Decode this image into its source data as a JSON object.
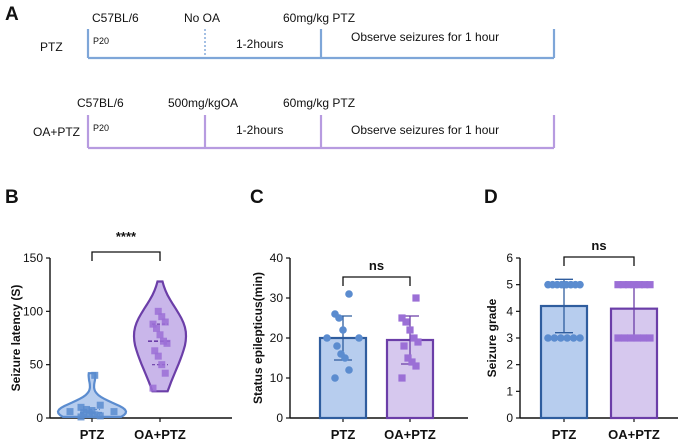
{
  "panel_labels": {
    "a": "A",
    "b": "B",
    "c": "C",
    "d": "D"
  },
  "timeline": {
    "row1": {
      "group": "PTZ",
      "strain": "C57BL/6",
      "age": "P20",
      "treatment": "No OA",
      "dose": "60mg/kg PTZ",
      "wait": "1-2hours",
      "observe": "Observe seizures for 1 hour",
      "color": "#7ea6d8"
    },
    "row2": {
      "group": "OA+PTZ",
      "strain": "C57BL/6",
      "age": "P20",
      "treatment": "500mg/kgOA",
      "dose": "60mg/kg PTZ",
      "wait": "1-2hours",
      "observe": "Observe seizures for 1 hour",
      "color": "#b79be0"
    }
  },
  "chart_data": [
    {
      "type": "violin",
      "panel": "B",
      "ylabel": "Seizure latency (S)",
      "ylim": [
        0,
        150
      ],
      "yticks": [
        0,
        50,
        100,
        150
      ],
      "categories": [
        "PTZ",
        "OA+PTZ"
      ],
      "significance": "****",
      "series": [
        {
          "category": "PTZ",
          "median": 5,
          "q1": 3,
          "q3": 8,
          "min": 1,
          "max": 42,
          "points": [
            1,
            2,
            3,
            4,
            5,
            6,
            6,
            7,
            8,
            10,
            12,
            40
          ],
          "color": "#5b8ccf",
          "fill": "#b7cdee"
        },
        {
          "category": "OA+PTZ",
          "median": 72,
          "q1": 50,
          "q3": 88,
          "min": 25,
          "max": 128,
          "points": [
            28,
            42,
            50,
            58,
            63,
            70,
            72,
            78,
            84,
            88,
            90,
            95,
            100
          ],
          "color": "#6b3ea8",
          "fill": "#c9b6ea"
        }
      ]
    },
    {
      "type": "bar",
      "panel": "C",
      "ylabel": "Status epilepticus(min)",
      "ylim": [
        0,
        40
      ],
      "yticks": [
        0,
        10,
        20,
        30,
        40
      ],
      "categories": [
        "PTZ",
        "OA+PTZ"
      ],
      "significance": "ns",
      "series": [
        {
          "category": "PTZ",
          "mean": 20,
          "sd": 5.5,
          "points": [
            10,
            12,
            15,
            16,
            18,
            20,
            20,
            22,
            25,
            26,
            31
          ],
          "color": "#2f5d9e",
          "fill": "#b7cdee",
          "point_color": "#5b8ccf"
        },
        {
          "category": "OA+PTZ",
          "mean": 19.5,
          "sd": 6,
          "points": [
            10,
            13,
            14,
            15,
            18,
            19,
            20,
            22,
            24,
            25,
            30
          ],
          "color": "#6b3ea8",
          "fill": "#d6c8ee",
          "point_color": "#9b6fd6"
        }
      ]
    },
    {
      "type": "bar",
      "panel": "D",
      "ylabel": "Seizure grade",
      "ylim": [
        0,
        6
      ],
      "yticks": [
        0,
        1,
        2,
        3,
        4,
        5,
        6
      ],
      "categories": [
        "PTZ",
        "OA+PTZ"
      ],
      "significance": "ns",
      "series": [
        {
          "category": "PTZ",
          "mean": 4.2,
          "sd": 1.0,
          "points": [
            3,
            3,
            3,
            3,
            3,
            3,
            5,
            5,
            5,
            5,
            5,
            5,
            5,
            5
          ],
          "color": "#2f5d9e",
          "fill": "#b7cdee",
          "point_color": "#5b8ccf"
        },
        {
          "category": "OA+PTZ",
          "mean": 4.1,
          "sd": 1.0,
          "points": [
            3,
            3,
            3,
            3,
            3,
            3,
            5,
            5,
            5,
            5,
            5,
            5,
            5
          ],
          "color": "#6b3ea8",
          "fill": "#d6c8ee",
          "point_color": "#9b6fd6"
        }
      ]
    }
  ]
}
